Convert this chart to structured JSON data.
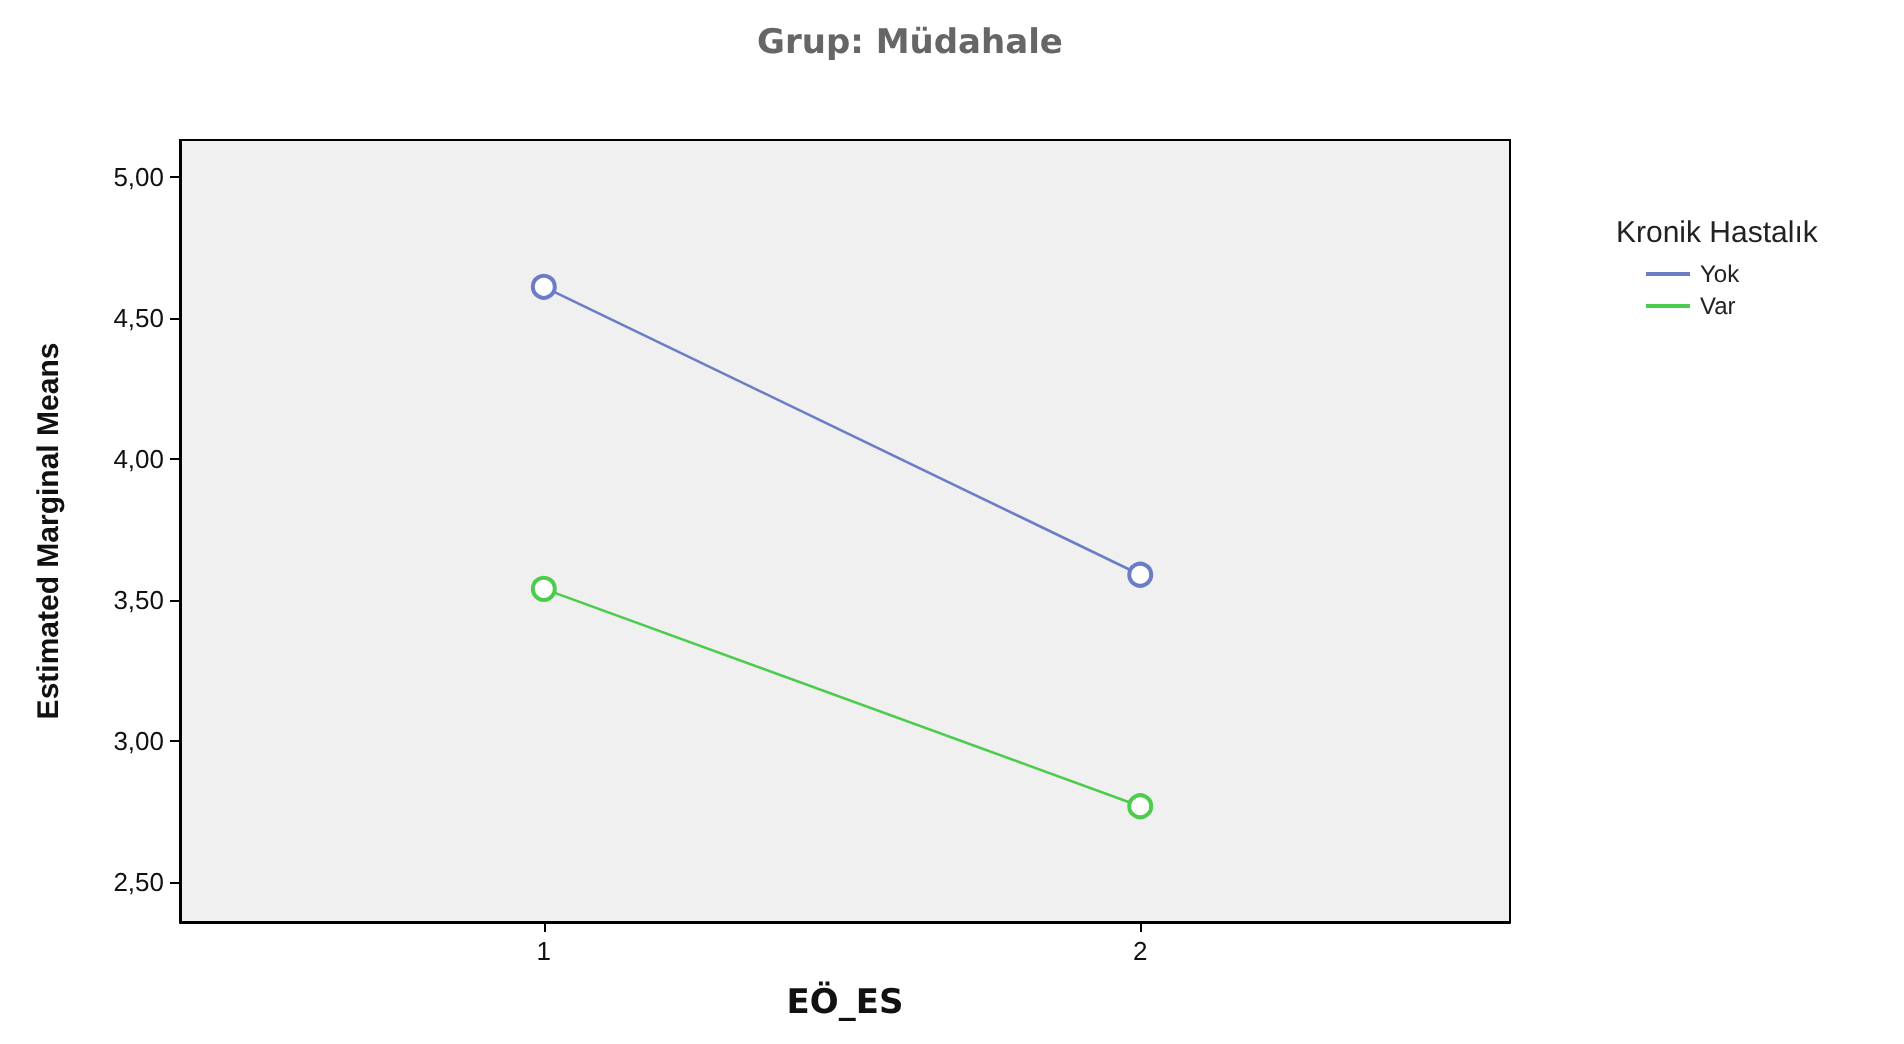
{
  "chart_data": {
    "type": "line",
    "title": "Grup: Müdahale",
    "xlabel": "EÖ_ES",
    "ylabel": "Estimated Marginal Means",
    "legend_title": "Kronik Hastalık",
    "x": [
      1,
      2
    ],
    "xlim": [
      0.39,
      2.62
    ],
    "xticks": [
      1,
      2
    ],
    "ylim": [
      2.36,
      5.13
    ],
    "yticks": [
      {
        "value": 2.5,
        "label": "2,50"
      },
      {
        "value": 3,
        "label": "3,00"
      },
      {
        "value": 3.5,
        "label": "3,50"
      },
      {
        "value": 4,
        "label": "4,00"
      },
      {
        "value": 4.5,
        "label": "4,50"
      },
      {
        "value": 5,
        "label": "5,00"
      }
    ],
    "series": [
      {
        "name": "Yok",
        "color": "#6a7dc6",
        "values": [
          4.61,
          3.59
        ]
      },
      {
        "name": "Var",
        "color": "#4ccc4c",
        "values": [
          3.54,
          2.77
        ]
      }
    ],
    "marker": "circle",
    "line_style": "solid",
    "grid": false,
    "legend": "top right"
  }
}
